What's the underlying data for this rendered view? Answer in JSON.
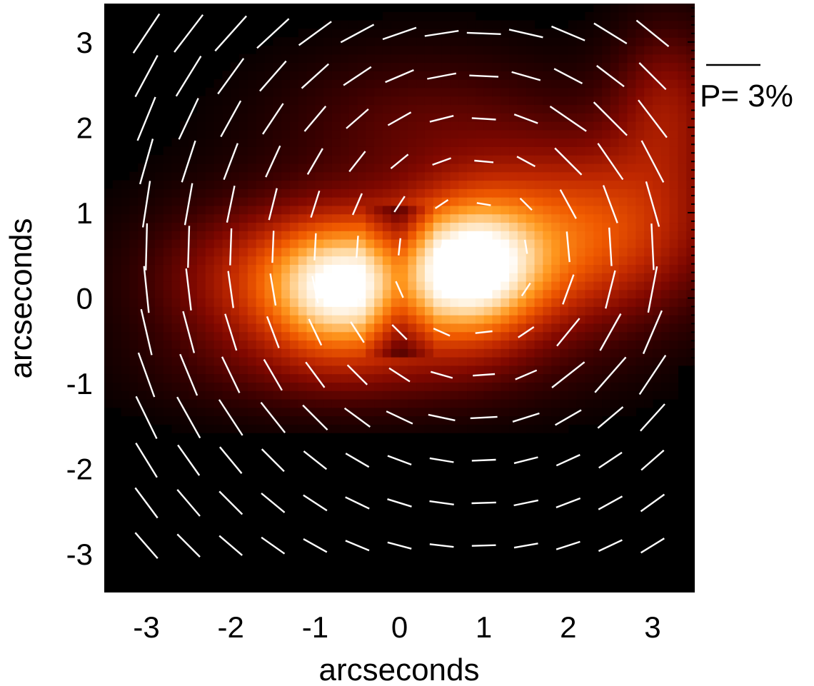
{
  "chart_data": {
    "type": "heatmap",
    "subtype": "polarization-vector-map",
    "xlabel": "arcseconds",
    "ylabel": "arcseconds",
    "xlim": [
      -3.5,
      3.5
    ],
    "ylim": [
      -3.45,
      3.45
    ],
    "x_ticks": [
      -3,
      -2,
      -1,
      0,
      1,
      2,
      3
    ],
    "x_tick_labels": [
      "-3",
      "-2",
      "-1",
      "0",
      "1",
      "2",
      "3"
    ],
    "y_ticks": [
      3,
      2,
      1,
      0,
      -1,
      -2,
      -3
    ],
    "y_tick_labels": [
      "3",
      "2",
      "1",
      "0",
      "-1",
      "-2",
      "-3"
    ],
    "colormap": [
      "#000000",
      "#3a0000",
      "#800800",
      "#c02800",
      "#f05a00",
      "#ff9a20",
      "#ffd8a0",
      "#ffffff"
    ],
    "intensity_peaks": [
      {
        "x": 0.85,
        "y": 0.35,
        "peak": 1.0
      },
      {
        "x": -0.7,
        "y": 0.1,
        "peak": 0.85
      },
      {
        "x": 2.3,
        "y": 0.9,
        "peak": 0.6
      }
    ],
    "vector_grid": {
      "x": [
        -3.0,
        -2.5,
        -2.0,
        -1.5,
        -1.0,
        -0.5,
        0.0,
        0.5,
        1.0,
        1.5,
        2.0,
        2.5,
        3.0
      ],
      "y": [
        3.1,
        2.6,
        2.1,
        1.6,
        1.1,
        0.6,
        0.1,
        -0.4,
        -0.9,
        -1.4,
        -1.9,
        -2.4,
        -2.9
      ]
    },
    "polarization_scale": {
      "label": "P= 3%",
      "percent": 3
    },
    "vector_color": "#ffffff"
  }
}
